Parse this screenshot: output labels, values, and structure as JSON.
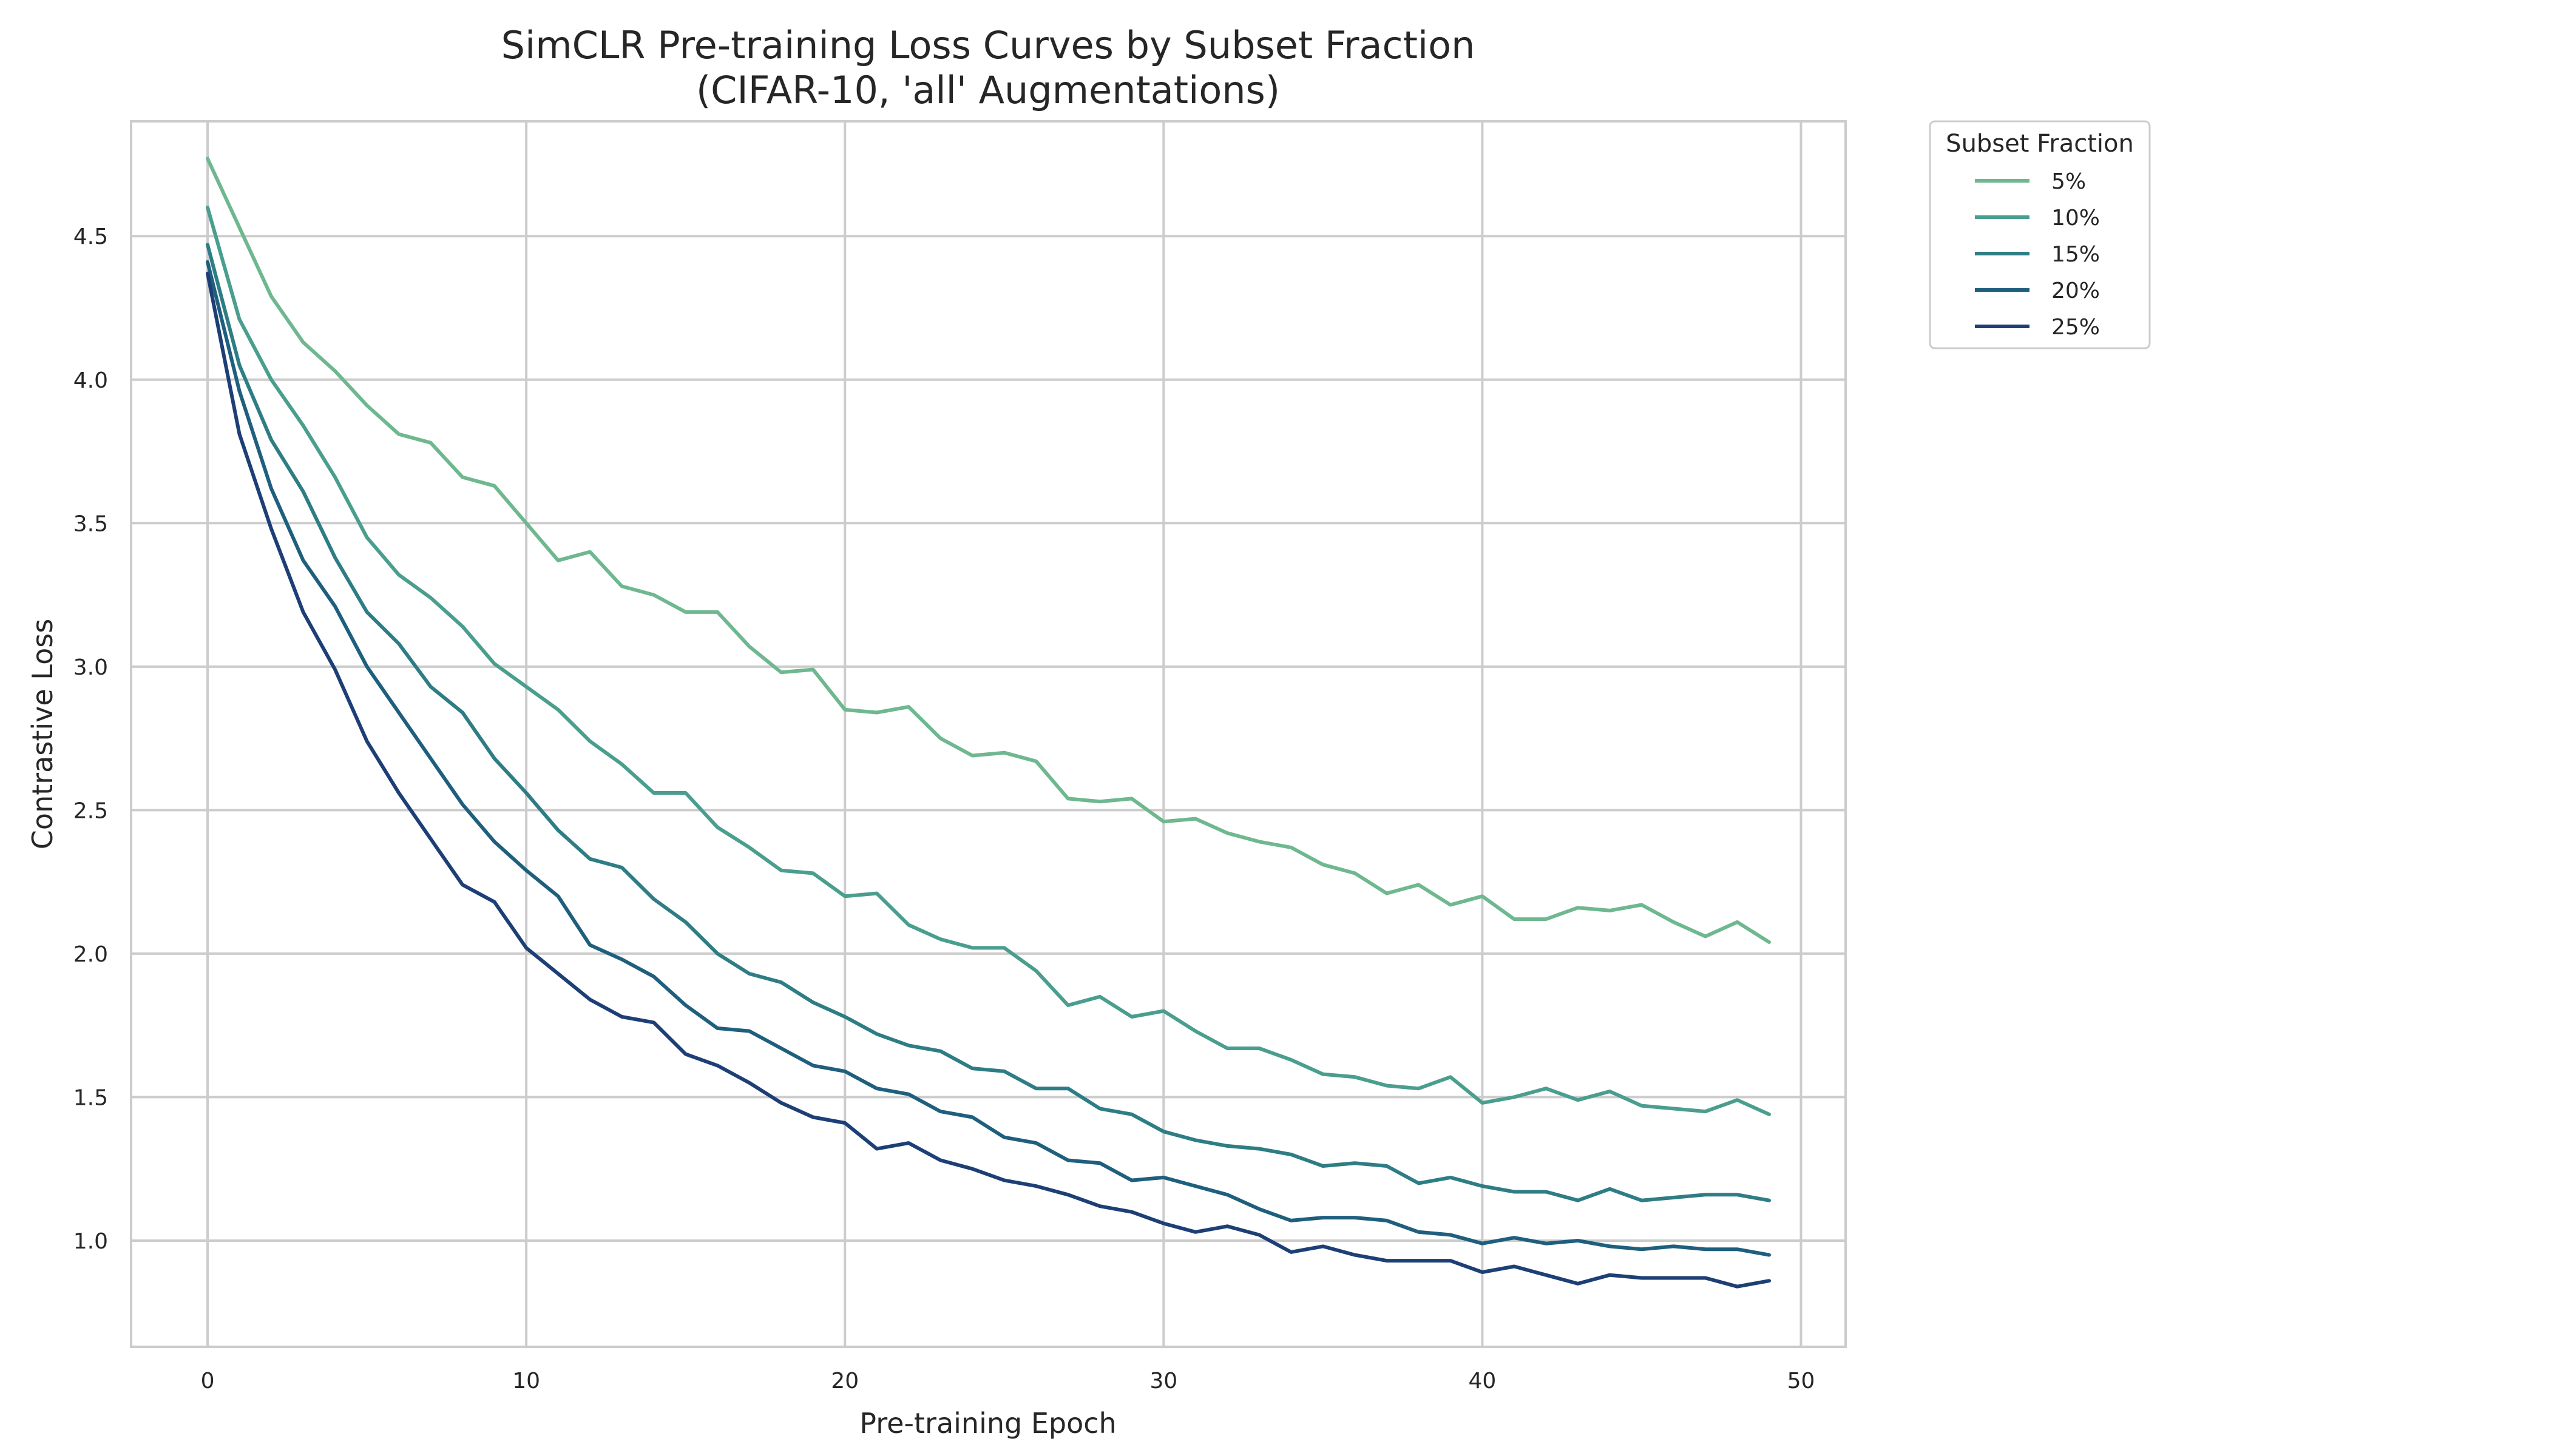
{
  "chart_data": {
    "type": "line",
    "title": [
      "SimCLR Pre-training Loss Curves by Subset Fraction",
      "(CIFAR-10, 'all' Augmentations)"
    ],
    "xlabel": "Pre-training Epoch",
    "ylabel": "Contrastive Loss",
    "xlim": [
      -2.4,
      51.4
    ],
    "ylim": [
      0.63,
      4.9
    ],
    "xticks": [
      0,
      10,
      20,
      30,
      40,
      50
    ],
    "xtick_labels": [
      "0",
      "10",
      "20",
      "30",
      "40",
      "50"
    ],
    "yticks": [
      1.0,
      1.5,
      2.0,
      2.5,
      3.0,
      3.5,
      4.0,
      4.5
    ],
    "ytick_labels": [
      "1.0",
      "1.5",
      "2.0",
      "2.5",
      "3.0",
      "3.5",
      "4.0",
      "4.5"
    ],
    "grid": true,
    "legend": {
      "title": "Subset Fraction",
      "placement": "outside-top-right"
    },
    "x": [
      0,
      1,
      2,
      3,
      4,
      5,
      6,
      7,
      8,
      9,
      10,
      11,
      12,
      13,
      14,
      15,
      16,
      17,
      18,
      19,
      20,
      21,
      22,
      23,
      24,
      25,
      26,
      27,
      28,
      29,
      30,
      31,
      32,
      33,
      34,
      35,
      36,
      37,
      38,
      39,
      40,
      41,
      42,
      43,
      44,
      45,
      46,
      47,
      48,
      49
    ],
    "series": [
      {
        "name": "5%",
        "color": "#6fb88f",
        "values": [
          4.77,
          4.53,
          4.29,
          4.13,
          4.03,
          3.91,
          3.81,
          3.78,
          3.66,
          3.63,
          3.5,
          3.37,
          3.4,
          3.28,
          3.25,
          3.19,
          3.19,
          3.07,
          2.98,
          2.99,
          2.85,
          2.84,
          2.86,
          2.75,
          2.69,
          2.7,
          2.67,
          2.54,
          2.53,
          2.54,
          2.46,
          2.47,
          2.42,
          2.39,
          2.37,
          2.31,
          2.28,
          2.21,
          2.24,
          2.17,
          2.2,
          2.12,
          2.12,
          2.16,
          2.15,
          2.17,
          2.11,
          2.06,
          2.11,
          2.04
        ]
      },
      {
        "name": "10%",
        "color": "#4a9e8e",
        "values": [
          4.6,
          4.21,
          4.0,
          3.84,
          3.66,
          3.45,
          3.32,
          3.24,
          3.14,
          3.01,
          2.93,
          2.85,
          2.74,
          2.66,
          2.56,
          2.56,
          2.44,
          2.37,
          2.29,
          2.28,
          2.2,
          2.21,
          2.1,
          2.05,
          2.02,
          2.02,
          1.94,
          1.82,
          1.85,
          1.78,
          1.8,
          1.73,
          1.67,
          1.67,
          1.63,
          1.58,
          1.57,
          1.54,
          1.53,
          1.57,
          1.48,
          1.5,
          1.53,
          1.49,
          1.52,
          1.47,
          1.46,
          1.45,
          1.49,
          1.44
        ]
      },
      {
        "name": "15%",
        "color": "#2e7d85",
        "values": [
          4.47,
          4.05,
          3.79,
          3.61,
          3.38,
          3.19,
          3.08,
          2.93,
          2.84,
          2.68,
          2.56,
          2.43,
          2.33,
          2.3,
          2.19,
          2.11,
          2.0,
          1.93,
          1.9,
          1.83,
          1.78,
          1.72,
          1.68,
          1.66,
          1.6,
          1.59,
          1.53,
          1.53,
          1.46,
          1.44,
          1.38,
          1.35,
          1.33,
          1.32,
          1.3,
          1.26,
          1.27,
          1.26,
          1.2,
          1.22,
          1.19,
          1.17,
          1.17,
          1.14,
          1.18,
          1.14,
          1.15,
          1.16,
          1.16,
          1.14
        ]
      },
      {
        "name": "20%",
        "color": "#1f5f7e",
        "values": [
          4.41,
          3.96,
          3.62,
          3.37,
          3.21,
          3.0,
          2.84,
          2.68,
          2.52,
          2.39,
          2.29,
          2.2,
          2.03,
          1.98,
          1.92,
          1.82,
          1.74,
          1.73,
          1.67,
          1.61,
          1.59,
          1.53,
          1.51,
          1.45,
          1.43,
          1.36,
          1.34,
          1.28,
          1.27,
          1.21,
          1.22,
          1.19,
          1.16,
          1.11,
          1.07,
          1.08,
          1.08,
          1.07,
          1.03,
          1.02,
          0.99,
          1.01,
          0.99,
          1.0,
          0.98,
          0.97,
          0.98,
          0.97,
          0.97,
          0.95
        ]
      },
      {
        "name": "25%",
        "color": "#1d3f76",
        "values": [
          4.37,
          3.81,
          3.48,
          3.19,
          2.99,
          2.74,
          2.56,
          2.4,
          2.24,
          2.18,
          2.02,
          1.93,
          1.84,
          1.78,
          1.76,
          1.65,
          1.61,
          1.55,
          1.48,
          1.43,
          1.41,
          1.32,
          1.34,
          1.28,
          1.25,
          1.21,
          1.19,
          1.16,
          1.12,
          1.1,
          1.06,
          1.03,
          1.05,
          1.02,
          0.96,
          0.98,
          0.95,
          0.93,
          0.93,
          0.93,
          0.89,
          0.91,
          0.88,
          0.85,
          0.88,
          0.87,
          0.87,
          0.87,
          0.84,
          0.86
        ]
      }
    ]
  }
}
